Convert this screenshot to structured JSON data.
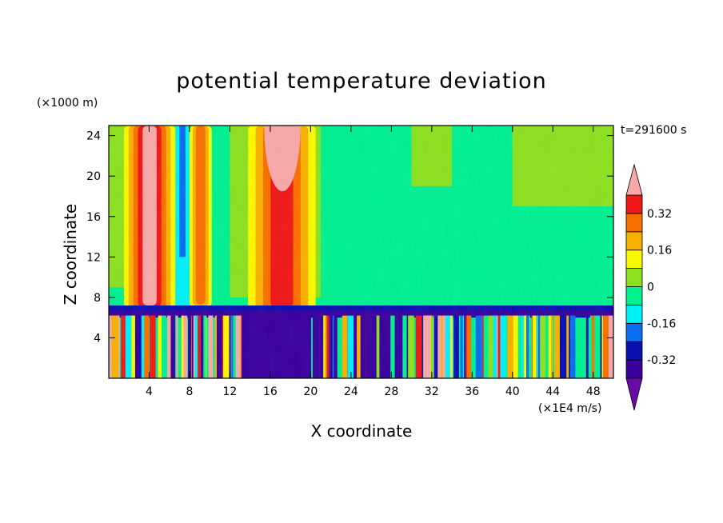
{
  "chart_data": {
    "type": "heatmap",
    "title": "potential temperature deviation",
    "xlabel": "X coordinate",
    "ylabel": "Z coordinate",
    "x_unit": "(×1E4 m/s)",
    "y_unit": "(×1000 m)",
    "annotation": "t=291600 s",
    "xlim": [
      0,
      50
    ],
    "ylim": [
      0,
      25
    ],
    "x_ticks": [
      "4",
      "8",
      "12",
      "16",
      "20",
      "24",
      "28",
      "32",
      "36",
      "40",
      "44",
      "48"
    ],
    "y_ticks": [
      "4",
      "8",
      "12",
      "16",
      "20",
      "24"
    ],
    "colorbar": {
      "levels": [
        -0.4,
        -0.32,
        -0.24,
        -0.16,
        -0.08,
        0,
        0.08,
        0.16,
        0.24,
        0.32,
        0.4
      ],
      "colors": [
        "#6a0aa8",
        "#3a00a0",
        "#0a10b0",
        "#0a6cf0",
        "#00f0f8",
        "#00f090",
        "#8ce020",
        "#f8f800",
        "#f8b000",
        "#f87000",
        "#f01818",
        "#f8a8a8"
      ],
      "labels": [
        "0.32",
        "0.16",
        "0",
        "-0.16",
        "-0.32"
      ],
      "label_values": [
        0.32,
        0.16,
        0,
        -0.16,
        -0.32
      ]
    },
    "features": [
      {
        "x_range": [
          2,
          6
        ],
        "z_range": [
          6.5,
          25
        ],
        "value": 0.4
      },
      {
        "x_range": [
          6.5,
          7.8
        ],
        "z_range": [
          7,
          25
        ],
        "value": -0.2
      },
      {
        "x_range": [
          8,
          10
        ],
        "z_range": [
          7,
          25
        ],
        "value": 0.1
      },
      {
        "x_range": [
          14,
          20
        ],
        "z_range": [
          6.5,
          25
        ],
        "value": 0.34
      },
      {
        "x_range": [
          13,
          20
        ],
        "z_range": [
          0,
          6.5
        ],
        "value": -0.4
      },
      {
        "x_range": [
          0,
          50
        ],
        "z_range": [
          0,
          6.5
        ],
        "value": "mixed"
      }
    ]
  }
}
